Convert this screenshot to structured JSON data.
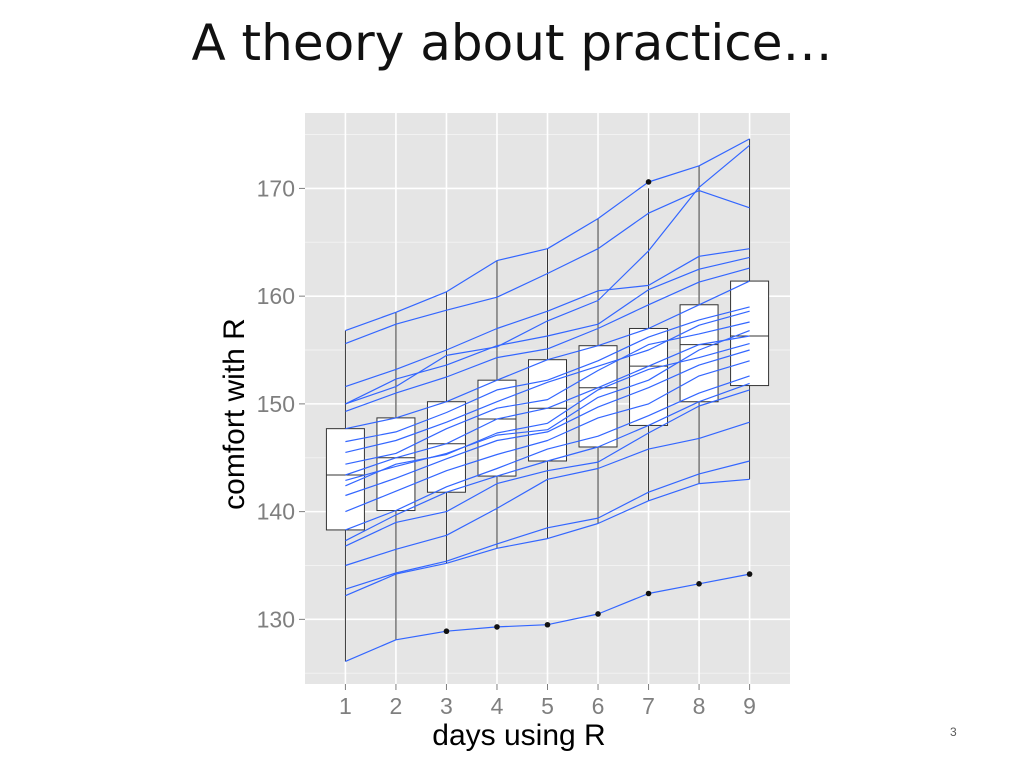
{
  "slide": {
    "title": "A theory about practice…",
    "page_number": "3"
  },
  "chart_data": {
    "type": "boxplot with line overlay",
    "xlabel": "days using R",
    "ylabel": "comfort with R",
    "x": [
      1,
      2,
      3,
      4,
      5,
      6,
      7,
      8,
      9
    ],
    "xlim": [
      0.2,
      9.8
    ],
    "ylim": [
      124,
      177
    ],
    "yticks": [
      130,
      140,
      150,
      160,
      170
    ],
    "grid": true,
    "panel_background": "#e5e5e5",
    "line_color": "#3366ff",
    "boxes": [
      {
        "x": 1,
        "whisker_low": 126.1,
        "q1": 138.3,
        "median": 143.4,
        "q3": 147.7,
        "whisker_high": 156.8
      },
      {
        "x": 2,
        "whisker_low": 128.1,
        "q1": 140.1,
        "median": 145.0,
        "q3": 148.7,
        "whisker_high": 158.5
      },
      {
        "x": 3,
        "whisker_low": 135.2,
        "q1": 141.8,
        "median": 146.3,
        "q3": 150.2,
        "whisker_high": 160.4
      },
      {
        "x": 4,
        "whisker_low": 136.6,
        "q1": 143.3,
        "median": 148.6,
        "q3": 152.2,
        "whisker_high": 163.3
      },
      {
        "x": 5,
        "whisker_low": 137.5,
        "q1": 144.7,
        "median": 149.6,
        "q3": 154.1,
        "whisker_high": 164.4
      },
      {
        "x": 6,
        "whisker_low": 138.9,
        "q1": 146.0,
        "median": 151.5,
        "q3": 155.4,
        "whisker_high": 167.2
      },
      {
        "x": 7,
        "whisker_low": 141.0,
        "q1": 148.0,
        "median": 153.5,
        "q3": 157.0,
        "whisker_high": 170.0
      },
      {
        "x": 8,
        "whisker_low": 142.6,
        "q1": 150.2,
        "median": 155.5,
        "q3": 159.2,
        "whisker_high": 172.1
      },
      {
        "x": 9,
        "whisker_low": 143.0,
        "q1": 151.7,
        "median": 156.3,
        "q3": 161.4,
        "whisker_high": 174.6
      }
    ],
    "outliers": [
      {
        "x": 3,
        "y": 128.9
      },
      {
        "x": 4,
        "y": 129.3
      },
      {
        "x": 5,
        "y": 129.5
      },
      {
        "x": 6,
        "y": 130.5
      },
      {
        "x": 7,
        "y": 132.4
      },
      {
        "x": 7,
        "y": 170.6
      },
      {
        "x": 8,
        "y": 133.3
      },
      {
        "x": 9,
        "y": 134.2
      }
    ],
    "series": [
      {
        "values": [
          126.1,
          128.1,
          128.9,
          129.3,
          129.5,
          130.5,
          132.4,
          133.3,
          134.2
        ]
      },
      {
        "values": [
          132.2,
          134.2,
          135.2,
          136.6,
          137.5,
          138.9,
          141.0,
          142.6,
          143.0
        ]
      },
      {
        "values": [
          132.8,
          134.3,
          135.4,
          137.0,
          138.5,
          139.4,
          141.8,
          143.5,
          144.7
        ]
      },
      {
        "values": [
          135.0,
          136.5,
          137.8,
          140.3,
          143.0,
          144.0,
          145.8,
          146.8,
          148.3
        ]
      },
      {
        "values": [
          136.8,
          139.0,
          140.0,
          142.6,
          143.8,
          144.6,
          147.3,
          149.8,
          151.3
        ]
      },
      {
        "values": [
          137.3,
          139.7,
          141.8,
          143.3,
          144.7,
          146.0,
          148.0,
          150.2,
          151.9
        ]
      },
      {
        "values": [
          138.3,
          140.1,
          142.3,
          144.0,
          145.8,
          147.0,
          148.9,
          151.0,
          152.6
        ]
      },
      {
        "values": [
          140.0,
          141.9,
          143.8,
          145.3,
          146.6,
          148.7,
          150.0,
          152.6,
          154.0
        ]
      },
      {
        "values": [
          141.5,
          143.1,
          144.9,
          146.6,
          147.4,
          149.7,
          151.5,
          153.6,
          155.0
        ]
      },
      {
        "values": [
          142.4,
          144.4,
          145.3,
          147.3,
          148.2,
          151.3,
          153.2,
          154.3,
          155.6
        ]
      },
      {
        "values": [
          142.9,
          144.2,
          145.4,
          147.1,
          147.6,
          150.6,
          152.2,
          155.0,
          156.8
        ]
      },
      {
        "values": [
          143.4,
          145.0,
          146.3,
          148.6,
          149.6,
          151.5,
          153.5,
          155.5,
          156.3
        ]
      },
      {
        "values": [
          144.4,
          145.4,
          147.7,
          149.6,
          150.4,
          153.1,
          155.5,
          156.5,
          157.6
        ]
      },
      {
        "values": [
          145.5,
          146.6,
          148.3,
          150.2,
          152.0,
          153.5,
          155.0,
          157.3,
          158.6
        ]
      },
      {
        "values": [
          146.5,
          147.4,
          149.2,
          151.3,
          152.2,
          154.0,
          156.2,
          157.8,
          159.0
        ]
      },
      {
        "values": [
          147.7,
          148.7,
          150.2,
          152.2,
          154.1,
          155.4,
          157.0,
          159.2,
          161.4
        ]
      },
      {
        "values": [
          149.3,
          151.0,
          152.5,
          154.3,
          155.1,
          157.0,
          159.2,
          161.3,
          162.6
        ]
      },
      {
        "values": [
          150.0,
          152.3,
          153.6,
          155.4,
          156.3,
          157.4,
          160.6,
          162.5,
          163.6
        ]
      },
      {
        "values": [
          151.6,
          153.2,
          155.0,
          157.0,
          158.6,
          160.5,
          161.0,
          163.7,
          164.4
        ]
      },
      {
        "values": [
          155.6,
          157.4,
          158.7,
          159.9,
          162.1,
          164.4,
          167.7,
          169.8,
          168.2
        ]
      },
      {
        "values": [
          156.8,
          158.5,
          160.4,
          163.3,
          164.4,
          167.2,
          170.6,
          172.1,
          174.6
        ]
      },
      {
        "values": [
          150.0,
          151.6,
          154.5,
          155.3,
          157.7,
          159.6,
          164.2,
          170.1,
          174.0
        ]
      }
    ]
  }
}
